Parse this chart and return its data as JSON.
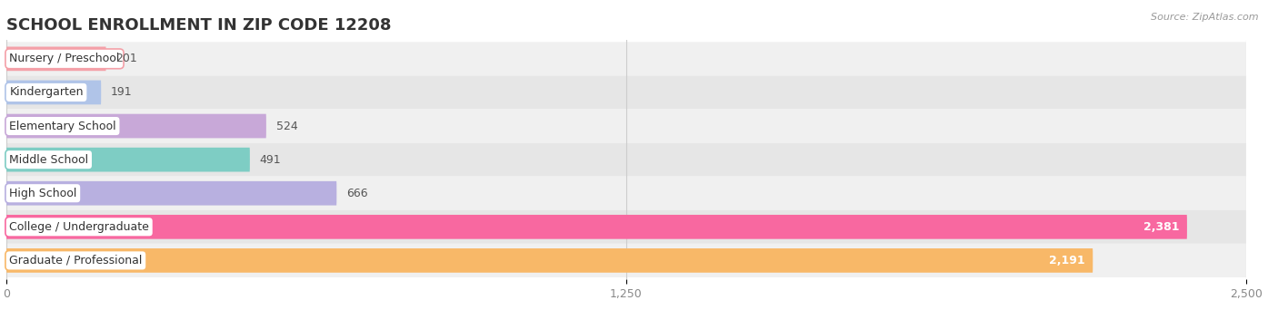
{
  "title": "SCHOOL ENROLLMENT IN ZIP CODE 12208",
  "source": "Source: ZipAtlas.com",
  "categories": [
    "Nursery / Preschool",
    "Kindergarten",
    "Elementary School",
    "Middle School",
    "High School",
    "College / Undergraduate",
    "Graduate / Professional"
  ],
  "values": [
    201,
    191,
    524,
    491,
    666,
    2381,
    2191
  ],
  "bar_colors": [
    "#f4a0a8",
    "#b0c4e8",
    "#c8a8d8",
    "#7ecdc4",
    "#b8b0e0",
    "#f868a0",
    "#f8b868"
  ],
  "row_bg_colors": [
    "#f0f0f0",
    "#e6e6e6"
  ],
  "xlim": [
    0,
    2500
  ],
  "xticks": [
    0,
    1250,
    2500
  ],
  "background_color": "#ffffff",
  "title_fontsize": 13,
  "label_fontsize": 9,
  "value_fontsize": 9
}
